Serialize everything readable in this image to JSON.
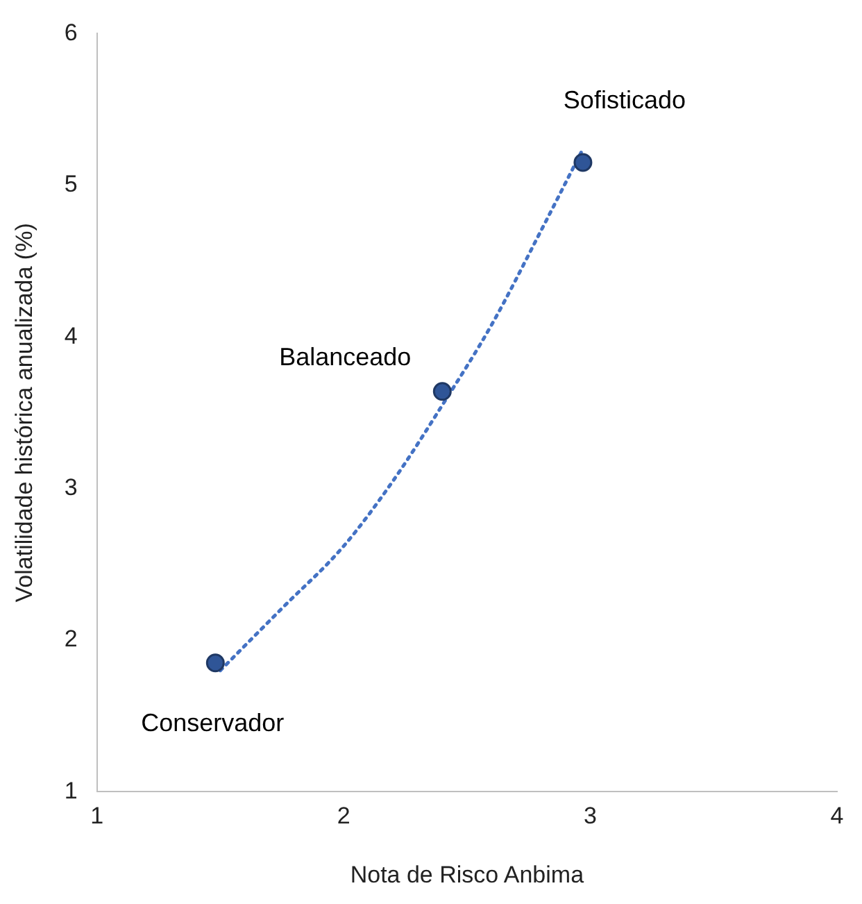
{
  "chart_data": {
    "type": "scatter",
    "xlabel": "Nota de Risco Anbima",
    "ylabel": "Volatilidade histórica anualizada (%)",
    "xlim": [
      1,
      4
    ],
    "ylim": [
      1,
      6
    ],
    "xticks": [
      1,
      2,
      3,
      4
    ],
    "yticks": [
      1,
      2,
      3,
      4,
      5,
      6
    ],
    "grid": false,
    "legend": false,
    "marker": "circle",
    "series": [
      {
        "color": "#2f5597",
        "x": [
          1.48,
          2.4,
          2.97
        ],
        "values": [
          1.85,
          3.64,
          5.15
        ]
      },
      {
        "type": "line",
        "color": "#4472c4",
        "line_style": "dotted",
        "marker": "none",
        "x": [
          1.5,
          1.75,
          2.0,
          2.2,
          2.4,
          2.6,
          2.8,
          2.97
        ],
        "values": [
          1.8,
          2.21,
          2.62,
          3.05,
          3.55,
          4.08,
          4.7,
          5.24
        ]
      }
    ],
    "annotations": [
      {
        "text": "Conservador",
        "x": 1.48,
        "y": 1.85
      },
      {
        "text": "Balanceado",
        "x": 2.4,
        "y": 3.64
      },
      {
        "text": "Sofisticado",
        "x": 2.97,
        "y": 5.15
      }
    ]
  }
}
